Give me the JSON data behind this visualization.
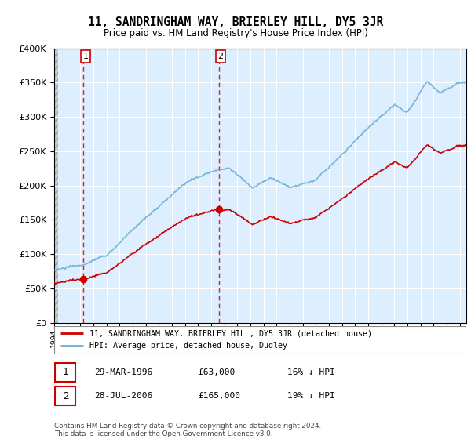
{
  "title": "11, SANDRINGHAM WAY, BRIERLEY HILL, DY5 3JR",
  "subtitle": "Price paid vs. HM Land Registry's House Price Index (HPI)",
  "legend_entry1": "11, SANDRINGHAM WAY, BRIERLEY HILL, DY5 3JR (detached house)",
  "legend_entry2": "HPI: Average price, detached house, Dudley",
  "table_row1_num": "1",
  "table_row1_date": "29-MAR-1996",
  "table_row1_price": "£63,000",
  "table_row1_hpi": "16% ↓ HPI",
  "table_row2_num": "2",
  "table_row2_date": "28-JUL-2006",
  "table_row2_price": "£165,000",
  "table_row2_hpi": "19% ↓ HPI",
  "footnote": "Contains HM Land Registry data © Crown copyright and database right 2024.\nThis data is licensed under the Open Government Licence v3.0.",
  "sale1_year": 1996.24,
  "sale1_price": 63000,
  "sale2_year": 2006.57,
  "sale2_price": 165000,
  "hpi_color": "#6baed6",
  "price_color": "#cc0000",
  "bg_blue_color": "#ddeeff",
  "ylim": [
    0,
    400000
  ],
  "xlim_start": 1994,
  "xlim_end": 2025.5,
  "hatch_end": 1994.3
}
